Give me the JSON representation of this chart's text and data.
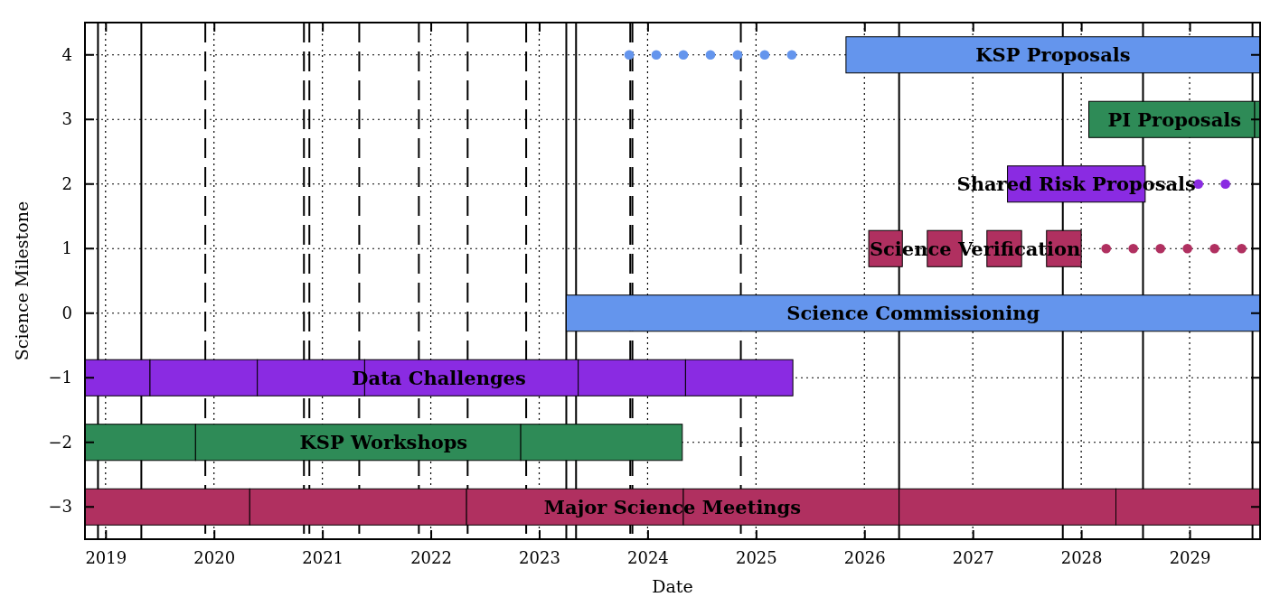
{
  "chart_data": {
    "type": "bar",
    "orientation": "horizontal",
    "xlabel": "Date",
    "ylabel": "Science Milestone",
    "categories": [
      "4",
      "3",
      "2",
      "1",
      "0",
      "−1",
      "−2",
      "−3"
    ],
    "xlim": [
      2018.81,
      2029.65
    ],
    "xticks": [
      2019,
      2020,
      2021,
      2022,
      2023,
      2024,
      2025,
      2026,
      2027,
      2028,
      2029
    ],
    "grid": true,
    "line_style": "dotted",
    "marker": "circle",
    "series": [
      {
        "base": [
          2025.83,
          2028.07,
          2027.32,
          2026.04,
          2023.25,
          2018.81,
          2018.81,
          2018.81
        ],
        "values": [
          3.82,
          1.53,
          1.27,
          0.31,
          6.4,
          0.6,
          1.02,
          1.52
        ],
        "colors": [
          "#6495ed",
          "#2e8b57",
          "#8a2be2",
          "#b03060",
          "#6495ed",
          "#8a2be2",
          "#2e8b57",
          "#b03060"
        ]
      },
      {
        "base": [
          null,
          2029.6,
          null,
          2026.58,
          null,
          2019.41,
          2019.83,
          2020.33
        ],
        "values": [
          null,
          0.05,
          null,
          0.32,
          null,
          0.99,
          3.0,
          2.0
        ],
        "colors": [
          null,
          "#2e8b57",
          null,
          "#b03060",
          null,
          "#8a2be2",
          "#2e8b57",
          "#b03060"
        ]
      },
      {
        "base": [
          null,
          null,
          null,
          2027.13,
          null,
          2020.4,
          2022.83,
          2022.33
        ],
        "values": [
          null,
          null,
          null,
          0.32,
          null,
          0.99,
          1.49,
          2.0
        ],
        "colors": [
          null,
          null,
          null,
          "#b03060",
          null,
          "#8a2be2",
          "#2e8b57",
          "#b03060"
        ]
      },
      {
        "base": [
          null,
          null,
          null,
          2027.68,
          null,
          2021.39,
          null,
          2024.33
        ],
        "values": [
          null,
          null,
          null,
          0.32,
          null,
          1.97,
          null,
          1.99
        ],
        "colors": [
          null,
          null,
          null,
          "#b03060",
          null,
          "#8a2be2",
          null,
          "#b03060"
        ]
      },
      {
        "base": [
          null,
          null,
          null,
          null,
          null,
          2023.36,
          null,
          2026.32
        ],
        "values": [
          null,
          null,
          null,
          null,
          null,
          0.99,
          null,
          2.0
        ],
        "colors": [
          null,
          null,
          null,
          null,
          null,
          "#8a2be2",
          null,
          "#b03060"
        ]
      },
      {
        "base": [
          null,
          null,
          null,
          null,
          null,
          2024.35,
          null,
          2028.32
        ],
        "values": [
          null,
          null,
          null,
          null,
          null,
          0.99,
          null,
          1.33
        ],
        "colors": [
          null,
          null,
          null,
          null,
          null,
          "#8a2be2",
          null,
          "#b03060"
        ]
      },
      {
        "type": "scatter",
        "values": [
          2023.83,
          null,
          null,
          2028.23,
          null,
          null,
          null,
          null
        ],
        "colors": [
          "#6495ed",
          null,
          null,
          "#b03060",
          null,
          null,
          null,
          null
        ]
      },
      {
        "type": "scatter",
        "values": [
          2024.08,
          null,
          2029.08,
          2028.48,
          null,
          null,
          null,
          null
        ],
        "colors": [
          "#6495ed",
          null,
          "#8a2be2",
          "#b03060",
          null,
          null,
          null,
          null
        ]
      },
      {
        "type": "scatter",
        "values": [
          2024.33,
          null,
          2029.33,
          2028.73,
          null,
          null,
          null,
          null
        ],
        "colors": [
          "#6495ed",
          null,
          "#8a2be2",
          "#b03060",
          null,
          null,
          null,
          null
        ]
      },
      {
        "type": "scatter",
        "values": [
          2024.58,
          null,
          null,
          2028.98,
          null,
          null,
          null,
          null
        ],
        "colors": [
          "#6495ed",
          null,
          null,
          "#b03060",
          null,
          null,
          null,
          null
        ]
      },
      {
        "type": "scatter",
        "values": [
          2024.83,
          null,
          null,
          2029.23,
          null,
          null,
          null,
          null
        ],
        "colors": [
          "#6495ed",
          null,
          null,
          "#b03060",
          null,
          null,
          null,
          null
        ]
      },
      {
        "type": "scatter",
        "values": [
          2025.08,
          null,
          null,
          2029.48,
          null,
          null,
          null,
          null
        ],
        "colors": [
          "#6495ed",
          null,
          null,
          "#b03060",
          null,
          null,
          null,
          null
        ]
      },
      {
        "type": "scatter",
        "values": [
          2025.33,
          null,
          null,
          null,
          null,
          null,
          null,
          null
        ],
        "colors": [
          "#6495ed",
          null,
          null,
          null,
          null,
          null,
          null,
          null
        ]
      }
    ],
    "ref_lines": [
      {
        "axis": "x",
        "value": 2018.93,
        "line_style": "solid"
      },
      {
        "axis": "x",
        "value": 2019.33,
        "line_style": "solid"
      },
      {
        "axis": "x",
        "value": 2019.92,
        "line_style": "dashed"
      },
      {
        "axis": "x",
        "value": 2020.83,
        "line_style": "dashed"
      },
      {
        "axis": "x",
        "value": 2020.88,
        "line_style": "dashed"
      },
      {
        "axis": "x",
        "value": 2021.34,
        "line_style": "dashed"
      },
      {
        "axis": "x",
        "value": 2021.89,
        "line_style": "dashed"
      },
      {
        "axis": "x",
        "value": 2022.34,
        "line_style": "dashed"
      },
      {
        "axis": "x",
        "value": 2022.88,
        "line_style": "dashed"
      },
      {
        "axis": "x",
        "value": 2023.25,
        "line_style": "solid"
      },
      {
        "axis": "x",
        "value": 2023.34,
        "line_style": "solid"
      },
      {
        "axis": "x",
        "value": 2023.84,
        "line_style": "dashed"
      },
      {
        "axis": "x",
        "value": 2023.86,
        "line_style": "dashed"
      },
      {
        "axis": "x",
        "value": 2024.86,
        "line_style": "dashed"
      },
      {
        "axis": "x",
        "value": 2026.32,
        "line_style": "solid"
      },
      {
        "axis": "x",
        "value": 2027.83,
        "line_style": "solid"
      },
      {
        "axis": "x",
        "value": 2028.57,
        "line_style": "solid"
      },
      {
        "axis": "x",
        "value": 2029.58,
        "line_style": "solid"
      }
    ],
    "annotations": [
      "KSP Proposals",
      "PI Proposals",
      "Shared Risk Proposals",
      "Science Verification",
      "Science Commissioning",
      "Data Challenges",
      "KSP Workshops",
      "Major Science Meetings"
    ]
  }
}
